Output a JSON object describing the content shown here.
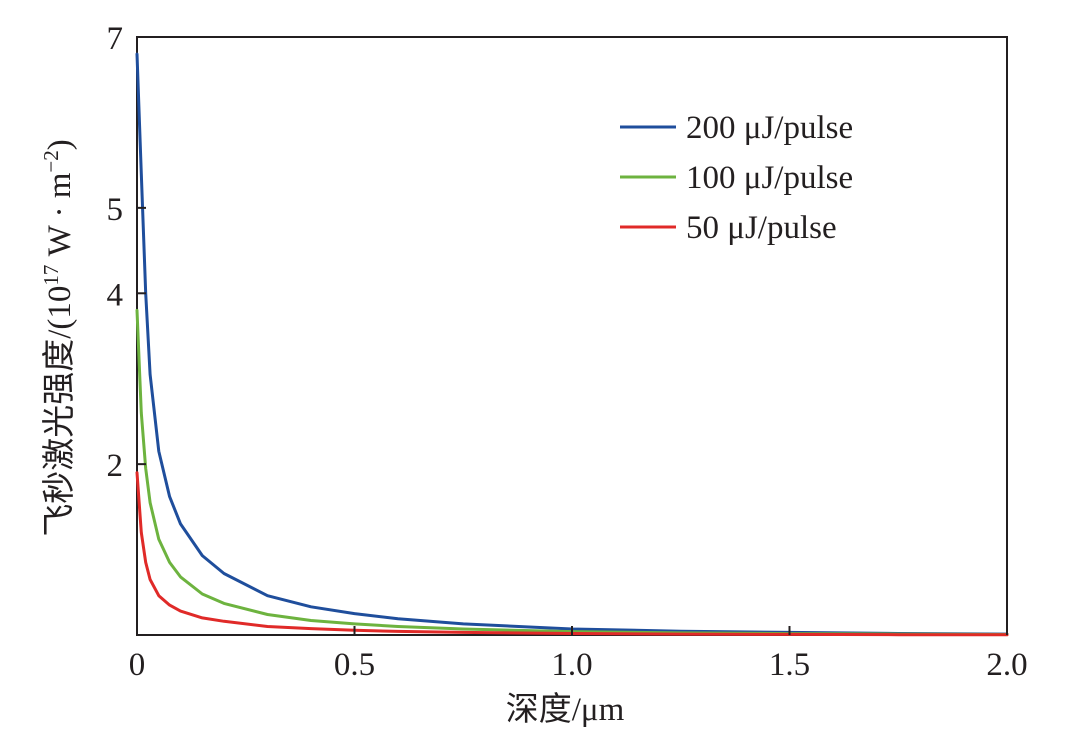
{
  "chart_data": {
    "type": "line",
    "xlabel": "深度/μm",
    "ylabel_prefix": "飞秒激光强度/(10",
    "ylabel_exp": "17",
    "ylabel_mid": " W · m",
    "ylabel_exp2": "−2",
    "ylabel_suffix": ")",
    "xlim": [
      0,
      2.0
    ],
    "ylim": [
      0,
      7
    ],
    "x_ticks": [
      {
        "value": 0,
        "label": "0"
      },
      {
        "value": 0.5,
        "label": "0.5"
      },
      {
        "value": 1.0,
        "label": "1.0"
      },
      {
        "value": 1.5,
        "label": "1.5"
      },
      {
        "value": 2.0,
        "label": "2.0"
      }
    ],
    "y_ticks": [
      {
        "value": 2,
        "label": "2"
      },
      {
        "value": 4,
        "label": "4"
      },
      {
        "value": 5,
        "label": "5"
      },
      {
        "value": 7,
        "label": "7"
      }
    ],
    "grid": false,
    "legend_position": "top-right",
    "series": [
      {
        "name": "200 μJ/pulse",
        "color": "#1f4e9c",
        "x": [
          0.0,
          0.01,
          0.02,
          0.03,
          0.05,
          0.075,
          0.1,
          0.15,
          0.2,
          0.3,
          0.4,
          0.5,
          0.6,
          0.75,
          1.0,
          1.25,
          1.5,
          1.75,
          2.0
        ],
        "y": [
          6.8,
          5.4,
          4.0,
          3.05,
          2.15,
          1.62,
          1.3,
          0.93,
          0.72,
          0.46,
          0.33,
          0.25,
          0.19,
          0.13,
          0.07,
          0.045,
          0.03,
          0.018,
          0.01
        ]
      },
      {
        "name": "100 μJ/pulse",
        "color": "#6db33f",
        "x": [
          0.0,
          0.01,
          0.02,
          0.03,
          0.05,
          0.075,
          0.1,
          0.15,
          0.2,
          0.3,
          0.4,
          0.5,
          0.6,
          0.75,
          1.0,
          1.25,
          1.5,
          1.75,
          2.0
        ],
        "y": [
          3.8,
          2.6,
          1.95,
          1.55,
          1.12,
          0.85,
          0.68,
          0.48,
          0.37,
          0.24,
          0.17,
          0.13,
          0.1,
          0.07,
          0.04,
          0.025,
          0.016,
          0.01,
          0.006
        ]
      },
      {
        "name": "50 μJ/pulse",
        "color": "#e02a28",
        "x": [
          0.0,
          0.01,
          0.02,
          0.03,
          0.05,
          0.075,
          0.1,
          0.15,
          0.2,
          0.3,
          0.4,
          0.5,
          0.6,
          0.75,
          1.0,
          1.25,
          1.5,
          1.75,
          2.0
        ],
        "y": [
          1.9,
          1.2,
          0.85,
          0.65,
          0.46,
          0.35,
          0.28,
          0.2,
          0.16,
          0.1,
          0.075,
          0.055,
          0.042,
          0.03,
          0.018,
          0.011,
          0.007,
          0.004,
          0.002
        ]
      }
    ]
  }
}
